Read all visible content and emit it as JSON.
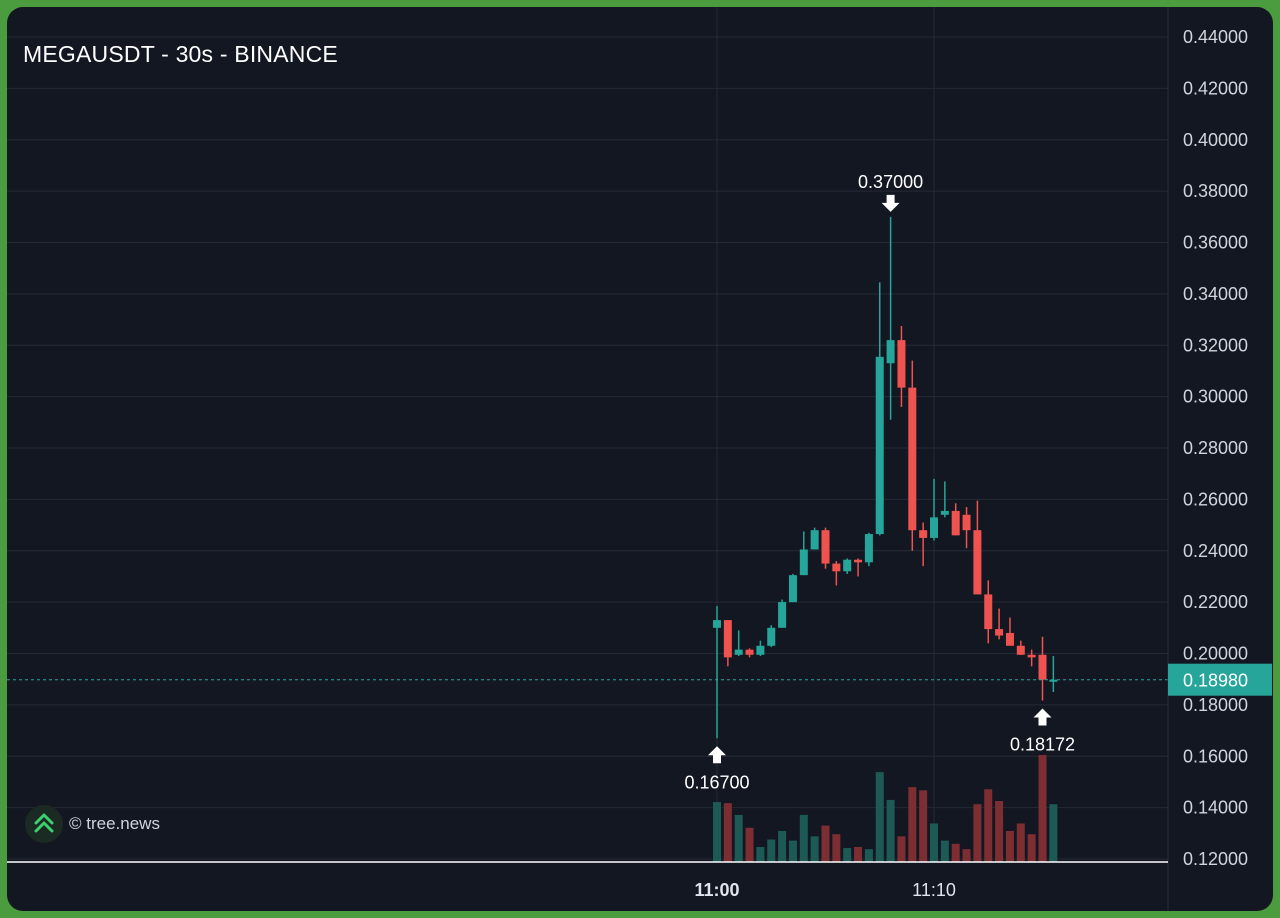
{
  "header": {
    "title": "MEGAUSDT - 30s - BINANCE"
  },
  "watermark": {
    "text": "© tree.news",
    "icon": "tree-news-logo-icon"
  },
  "colors": {
    "background": "#131722",
    "up": "#26a69a",
    "down": "#ef5350",
    "volume_up": "#1e5a55",
    "volume_down": "#7c2e33",
    "grid": "#242a36",
    "axis_text": "#d1d4dc",
    "last_price_badge": "#26a69a"
  },
  "chart_data": {
    "type": "candlestick",
    "symbol": "MEGAUSDT",
    "interval": "30s",
    "exchange": "BINANCE",
    "x_ticks": [
      {
        "label": "11:00",
        "index": 0,
        "bold": true
      },
      {
        "label": "11:10",
        "index": 20,
        "bold": false
      }
    ],
    "y_ticks": [
      "0.44000",
      "0.42000",
      "0.40000",
      "0.38000",
      "0.36000",
      "0.34000",
      "0.32000",
      "0.30000",
      "0.28000",
      "0.26000",
      "0.24000",
      "0.22000",
      "0.20000",
      "0.18000",
      "0.16000",
      "0.14000",
      "0.12000"
    ],
    "ylim": [
      0.12,
      0.44
    ],
    "last_price": "0.18980",
    "last_price_value": 0.1898,
    "annotations": [
      {
        "label": "0.37000",
        "type": "high",
        "index": 16,
        "value": 0.37
      },
      {
        "label": "0.16700",
        "type": "low",
        "index": 0,
        "value": 0.167
      },
      {
        "label": "0.18172",
        "type": "low",
        "index": 30,
        "value": 0.18172
      }
    ],
    "candles": [
      {
        "o": 0.21,
        "h": 0.2185,
        "l": 0.167,
        "c": 0.213,
        "v": 0.56
      },
      {
        "o": 0.213,
        "h": 0.213,
        "l": 0.195,
        "c": 0.1985,
        "v": 0.55
      },
      {
        "o": 0.1995,
        "h": 0.209,
        "l": 0.199,
        "c": 0.2015,
        "v": 0.44
      },
      {
        "o": 0.2015,
        "h": 0.202,
        "l": 0.1985,
        "c": 0.1995,
        "v": 0.32
      },
      {
        "o": 0.1995,
        "h": 0.205,
        "l": 0.199,
        "c": 0.203,
        "v": 0.14
      },
      {
        "o": 0.203,
        "h": 0.211,
        "l": 0.2025,
        "c": 0.21,
        "v": 0.21
      },
      {
        "o": 0.21,
        "h": 0.221,
        "l": 0.21,
        "c": 0.22,
        "v": 0.29
      },
      {
        "o": 0.22,
        "h": 0.231,
        "l": 0.22,
        "c": 0.2305,
        "v": 0.2
      },
      {
        "o": 0.2305,
        "h": 0.2475,
        "l": 0.2305,
        "c": 0.2405,
        "v": 0.44
      },
      {
        "o": 0.2405,
        "h": 0.249,
        "l": 0.2405,
        "c": 0.248,
        "v": 0.24
      },
      {
        "o": 0.248,
        "h": 0.249,
        "l": 0.233,
        "c": 0.235,
        "v": 0.34
      },
      {
        "o": 0.235,
        "h": 0.236,
        "l": 0.2265,
        "c": 0.232,
        "v": 0.26
      },
      {
        "o": 0.232,
        "h": 0.237,
        "l": 0.231,
        "c": 0.2365,
        "v": 0.13
      },
      {
        "o": 0.2365,
        "h": 0.237,
        "l": 0.23,
        "c": 0.2355,
        "v": 0.14
      },
      {
        "o": 0.2355,
        "h": 0.247,
        "l": 0.234,
        "c": 0.2465,
        "v": 0.12
      },
      {
        "o": 0.2465,
        "h": 0.3445,
        "l": 0.246,
        "c": 0.3155,
        "v": 0.84
      },
      {
        "o": 0.313,
        "h": 0.37,
        "l": 0.291,
        "c": 0.322,
        "v": 0.58
      },
      {
        "o": 0.322,
        "h": 0.3275,
        "l": 0.296,
        "c": 0.3035,
        "v": 0.24
      },
      {
        "o": 0.3035,
        "h": 0.314,
        "l": 0.24,
        "c": 0.248,
        "v": 0.7
      },
      {
        "o": 0.248,
        "h": 0.251,
        "l": 0.234,
        "c": 0.245,
        "v": 0.67
      },
      {
        "o": 0.245,
        "h": 0.268,
        "l": 0.244,
        "c": 0.253,
        "v": 0.36
      },
      {
        "o": 0.254,
        "h": 0.267,
        "l": 0.253,
        "c": 0.2555,
        "v": 0.2
      },
      {
        "o": 0.2555,
        "h": 0.2585,
        "l": 0.246,
        "c": 0.246,
        "v": 0.17
      },
      {
        "o": 0.254,
        "h": 0.257,
        "l": 0.241,
        "c": 0.248,
        "v": 0.12
      },
      {
        "o": 0.248,
        "h": 0.2595,
        "l": 0.2235,
        "c": 0.223,
        "v": 0.54
      },
      {
        "o": 0.223,
        "h": 0.2285,
        "l": 0.204,
        "c": 0.2095,
        "v": 0.68
      },
      {
        "o": 0.2095,
        "h": 0.2175,
        "l": 0.2055,
        "c": 0.207,
        "v": 0.57
      },
      {
        "o": 0.208,
        "h": 0.214,
        "l": 0.2035,
        "c": 0.203,
        "v": 0.29
      },
      {
        "o": 0.203,
        "h": 0.205,
        "l": 0.1995,
        "c": 0.1995,
        "v": 0.36
      },
      {
        "o": 0.1995,
        "h": 0.2015,
        "l": 0.195,
        "c": 0.1985,
        "v": 0.26
      },
      {
        "o": 0.1995,
        "h": 0.2065,
        "l": 0.1817,
        "c": 0.1898,
        "v": 1.0
      },
      {
        "o": 0.189,
        "h": 0.199,
        "l": 0.185,
        "c": 0.1898,
        "v": 0.54
      }
    ]
  }
}
